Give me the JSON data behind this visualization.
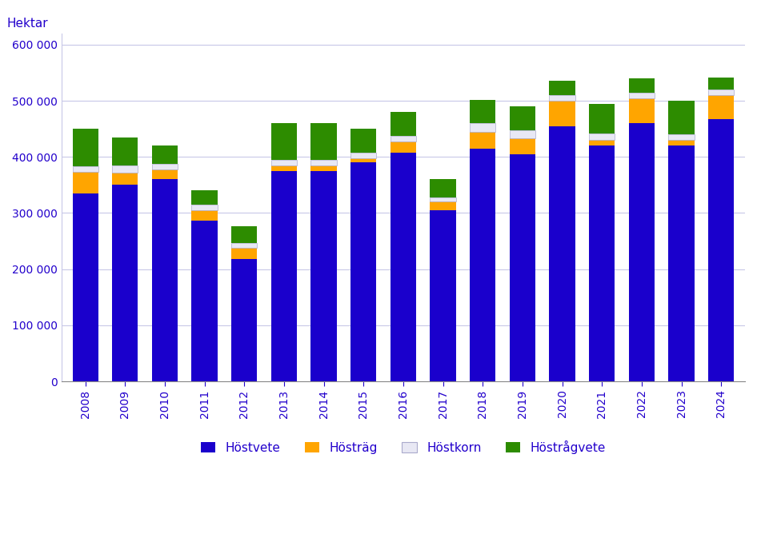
{
  "years": [
    2008,
    2009,
    2010,
    2011,
    2012,
    2013,
    2014,
    2015,
    2016,
    2017,
    2018,
    2019,
    2020,
    2021,
    2022,
    2023,
    2024
  ],
  "hostvete": [
    335000,
    350000,
    360000,
    287000,
    218000,
    375000,
    375000,
    390000,
    408000,
    305000,
    415000,
    405000,
    455000,
    420000,
    460000,
    420000,
    468000
  ],
  "hostrag": [
    38000,
    22000,
    18000,
    18000,
    20000,
    10000,
    10000,
    8000,
    20000,
    15000,
    30000,
    28000,
    45000,
    10000,
    45000,
    10000,
    42000
  ],
  "hostkorn": [
    10000,
    12000,
    10000,
    10000,
    8000,
    10000,
    10000,
    10000,
    10000,
    8000,
    15000,
    15000,
    10000,
    12000,
    10000,
    10000,
    10000
  ],
  "hostragvete": [
    67000,
    50000,
    32000,
    25000,
    30000,
    65000,
    65000,
    42000,
    42000,
    32000,
    42000,
    42000,
    25000,
    52000,
    25000,
    60000,
    22000
  ],
  "colors": {
    "hostvete": "#1a00cc",
    "hostrag": "#FFA500",
    "hostkorn": "#E8E8F4",
    "hostragvete": "#2d8c00"
  },
  "ylabel": "Hektar",
  "ylim": [
    0,
    620000
  ],
  "yticks": [
    0,
    100000,
    200000,
    300000,
    400000,
    500000,
    600000
  ],
  "ytick_labels": [
    "0",
    "100 000",
    "200 000",
    "300 000",
    "400 000",
    "500 000",
    "600 000"
  ],
  "legend_labels": [
    "Höstvete",
    "Hösträg",
    "Höstkorn",
    "Höstrågvete"
  ],
  "background_color": "#ffffff",
  "grid_color": "#c8c8e8",
  "bar_edge_color": "#333333"
}
